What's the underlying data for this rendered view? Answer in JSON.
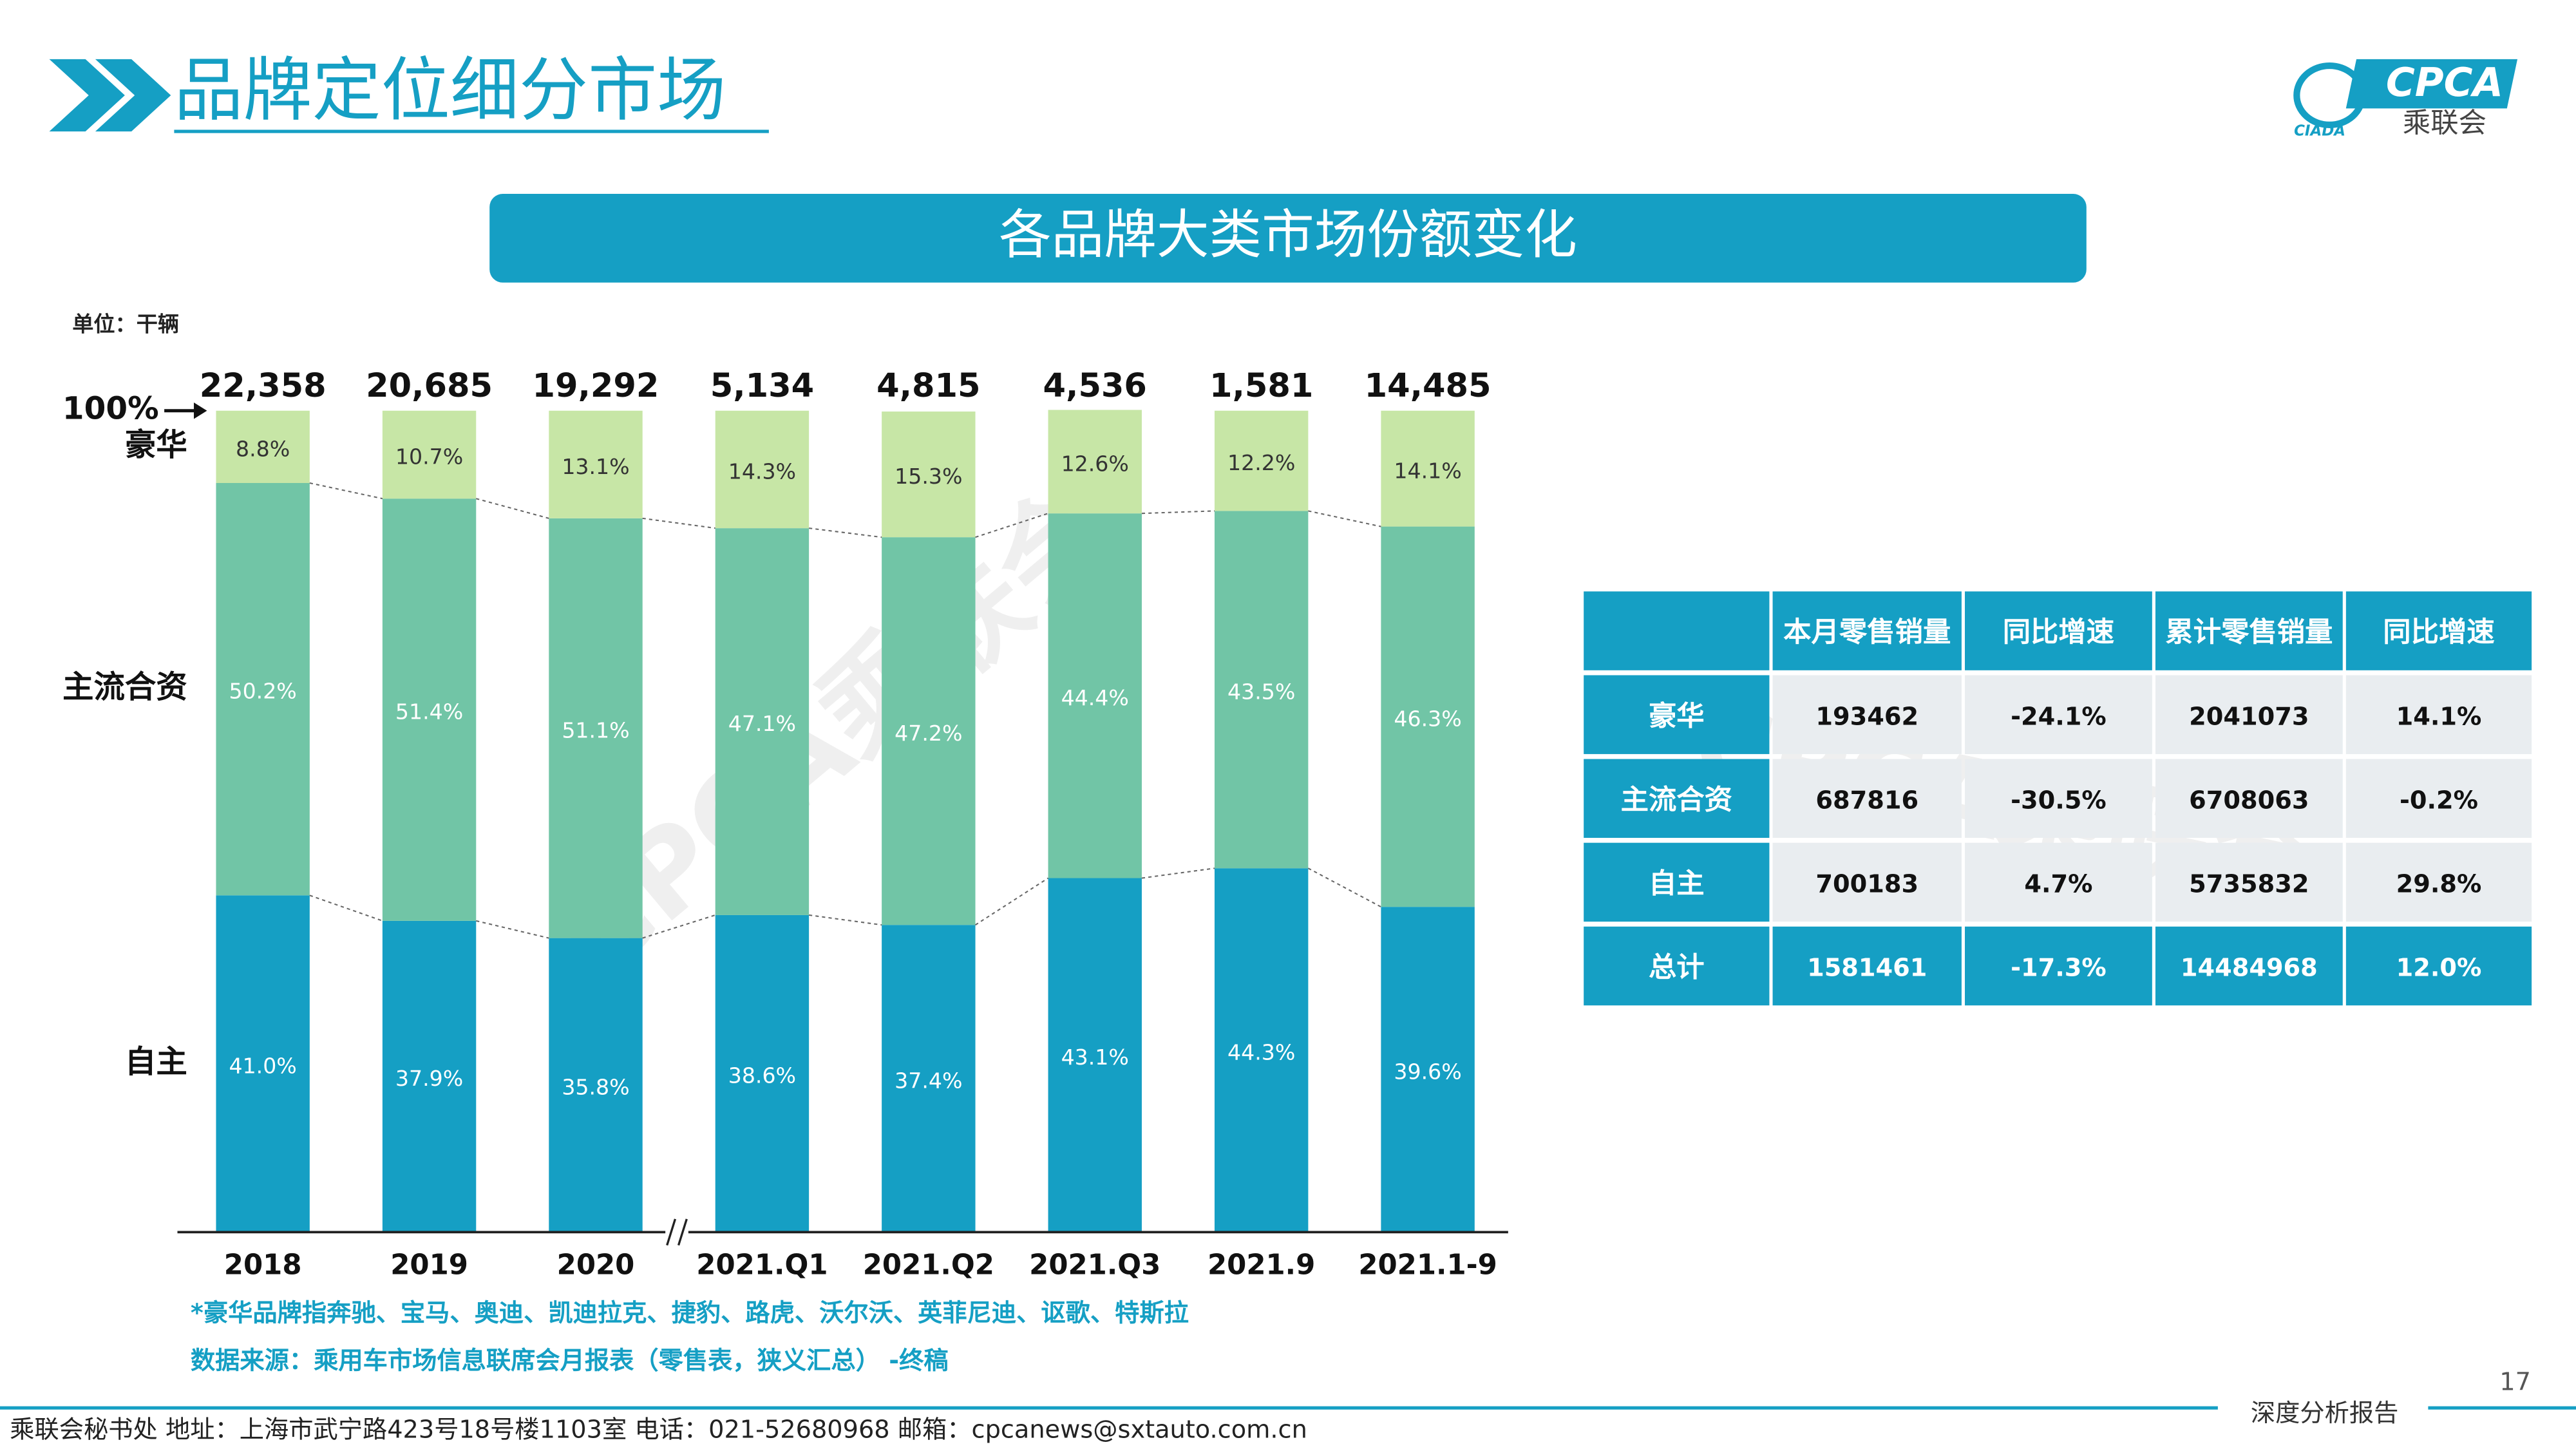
{
  "header": {
    "title": "品牌定位细分市场",
    "logo_text": "CPCA",
    "logo_subtext": "乘联会",
    "logo_small": "CIADA"
  },
  "chart_data": {
    "type": "stacked_bar_100",
    "title": "各品牌大类市场份额变化",
    "unit": "单位：干辆",
    "top_label": "100%",
    "categories": [
      "2018",
      "2019",
      "2020",
      "2021.Q1",
      "2021.Q2",
      "2021.Q3",
      "2021.9",
      "2021.1-9"
    ],
    "totals": {
      "values": [
        22358,
        20685,
        19292,
        5134,
        4815,
        4536,
        1581,
        14485
      ],
      "value_labels": [
        "22,358",
        "20,685",
        "19,292",
        "5,134",
        "4,815",
        "4,536",
        "1,581",
        "14,485"
      ]
    },
    "ylim": [
      0,
      100
    ],
    "series": [
      {
        "name": "自主",
        "color": "#159fc4",
        "values": [
          41.0,
          37.9,
          35.8,
          38.6,
          37.4,
          43.1,
          44.3,
          39.6
        ],
        "value_labels": [
          "41.0%",
          "37.9%",
          "35.8%",
          "38.6%",
          "37.4%",
          "43.1%",
          "44.3%",
          "39.6%"
        ]
      },
      {
        "name": "主流合资",
        "color": "#71c5a6",
        "values": [
          50.2,
          51.4,
          51.1,
          47.1,
          47.2,
          44.4,
          43.5,
          46.3
        ],
        "value_labels": [
          "50.2%",
          "51.4%",
          "51.1%",
          "47.1%",
          "47.2%",
          "44.4%",
          "43.5%",
          "46.3%"
        ]
      },
      {
        "name": "豪华",
        "color": "#c7e6a6",
        "values": [
          8.8,
          10.7,
          13.1,
          14.3,
          15.3,
          12.6,
          12.2,
          14.1
        ],
        "value_labels": [
          "8.8%",
          "10.7%",
          "13.1%",
          "14.3%",
          "15.3%",
          "12.6%",
          "12.2%",
          "14.1%"
        ]
      }
    ],
    "notes": [
      "*豪华品牌指奔驰、宝马、奥迪、凯迪拉克、捷豹、路虎、沃尔沃、英菲尼迪、讴歌、特斯拉",
      "数据来源：乘用车市场信息联席会月报表（零售表，狭义汇总） -终稿"
    ]
  },
  "table": {
    "columns": [
      "本月零售销量",
      "同比增速",
      "累计零售销量",
      "同比增速"
    ],
    "rows": [
      [
        "豪华",
        "193462",
        "-24.1%",
        "2041073",
        "14.1%"
      ],
      [
        "主流合资",
        "687816",
        "-30.5%",
        "6708063",
        "-0.2%"
      ],
      [
        "自主",
        "700183",
        "4.7%",
        "5735832",
        "29.8%"
      ],
      [
        "总计",
        "1581461",
        "-17.3%",
        "14484968",
        "12.0%"
      ]
    ]
  },
  "watermark": "CPCA乘联会",
  "footer": {
    "contact": "乘联会秘书处   地址：上海市武宁路423号18号楼1103室  电话：021-52680968   邮箱：cpcanews@sxtauto.com.cn",
    "page_number": "17",
    "report_tag": "深度分析报告"
  }
}
